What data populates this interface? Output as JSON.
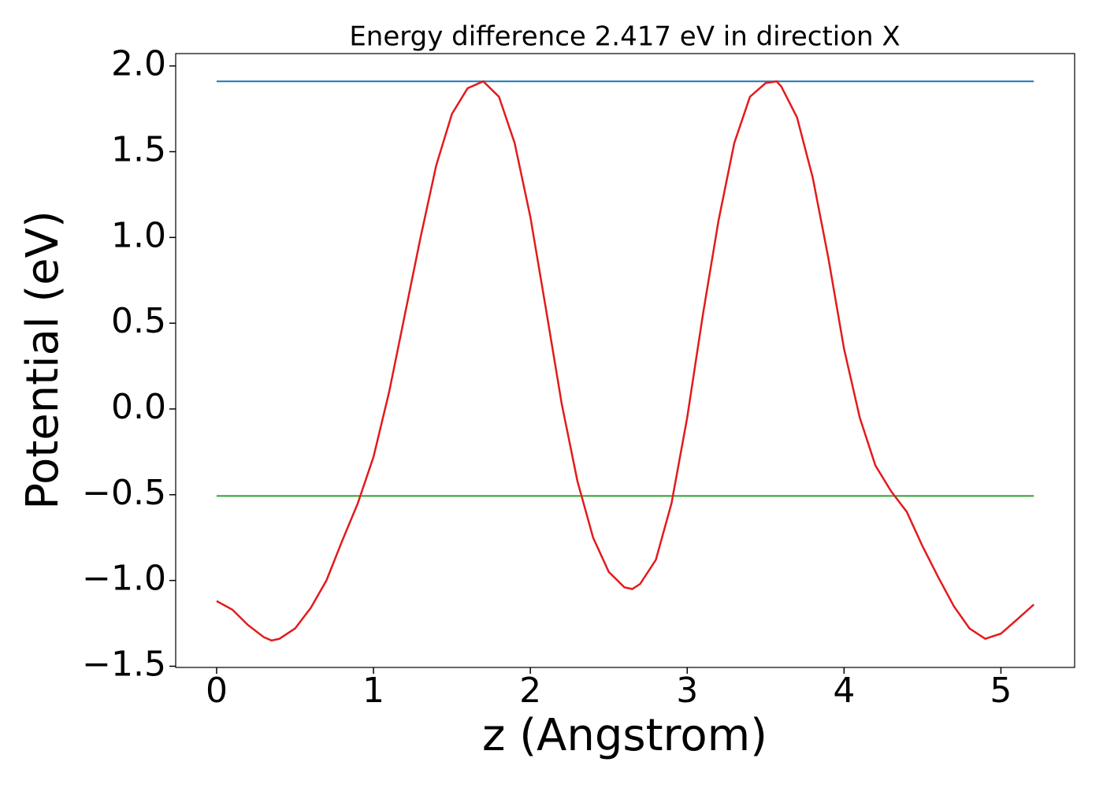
{
  "chart_data": {
    "type": "line",
    "title": "Energy difference 2.417 eV in direction X",
    "xlabel": "z (Angstrom)",
    "ylabel": "Potential (eV)",
    "x": [
      0,
      0.1,
      0.2,
      0.3,
      0.35,
      0.4,
      0.5,
      0.6,
      0.7,
      0.8,
      0.9,
      1.0,
      1.1,
      1.2,
      1.3,
      1.4,
      1.5,
      1.6,
      1.7,
      1.8,
      1.9,
      2.0,
      2.1,
      2.2,
      2.3,
      2.4,
      2.5,
      2.6,
      2.65,
      2.7,
      2.8,
      2.9,
      3.0,
      3.1,
      3.2,
      3.3,
      3.4,
      3.5,
      3.57,
      3.6,
      3.7,
      3.8,
      3.9,
      4.0,
      4.1,
      4.2,
      4.3,
      4.4,
      4.5,
      4.6,
      4.7,
      4.8,
      4.9,
      5.0,
      5.1,
      5.21
    ],
    "values": [
      -1.12,
      -1.17,
      -1.26,
      -1.33,
      -1.35,
      -1.34,
      -1.28,
      -1.16,
      -1.0,
      -0.77,
      -0.55,
      -0.28,
      0.1,
      0.55,
      1.0,
      1.42,
      1.72,
      1.87,
      1.91,
      1.82,
      1.55,
      1.12,
      0.58,
      0.03,
      -0.42,
      -0.75,
      -0.95,
      -1.04,
      -1.05,
      -1.02,
      -0.88,
      -0.55,
      -0.05,
      0.55,
      1.1,
      1.55,
      1.82,
      1.9,
      1.91,
      1.88,
      1.7,
      1.35,
      0.88,
      0.35,
      -0.05,
      -0.33,
      -0.48,
      -0.6,
      -0.8,
      -0.98,
      -1.15,
      -1.28,
      -1.34,
      -1.31,
      -1.23,
      -1.14
    ],
    "color": "#e31a1c",
    "hlines": [
      {
        "y": 1.91,
        "color": "#1f77b4"
      },
      {
        "y": -0.507,
        "color": "#2ca02c"
      }
    ],
    "hline_xlim": [
      0,
      5.21
    ],
    "xlim": [
      -0.261,
      5.47
    ],
    "ylim": [
      -1.507,
      2.072
    ],
    "xticks": [
      0,
      1,
      2,
      3,
      4,
      5
    ],
    "yticks": [
      {
        "value": -1.5,
        "label": "−1.5"
      },
      {
        "value": -1.0,
        "label": "−1.0"
      },
      {
        "value": -0.5,
        "label": "−0.5"
      },
      {
        "value": 0,
        "label": "0.0"
      },
      0.5,
      {
        "value": 1.0,
        "label": "1.0"
      },
      1.5,
      {
        "value": 2.0,
        "label": "2.0"
      }
    ]
  }
}
